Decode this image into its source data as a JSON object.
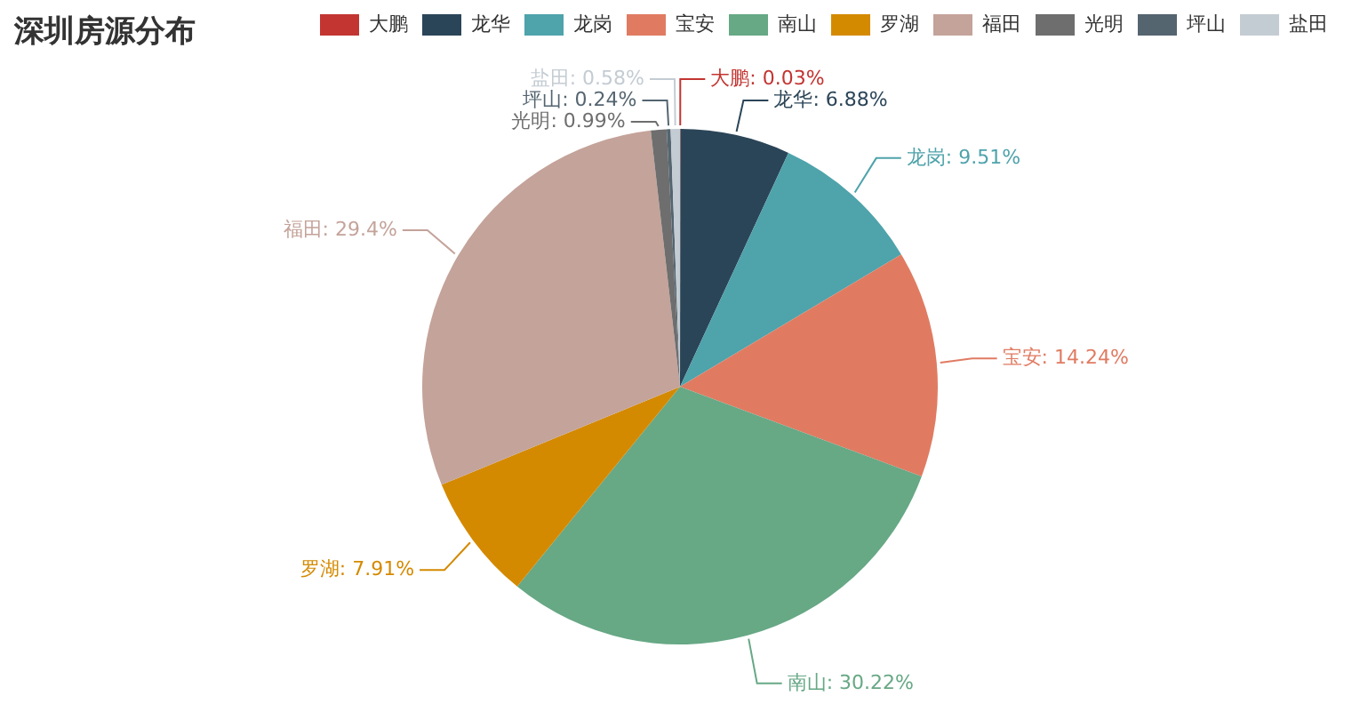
{
  "chart_data": {
    "type": "pie",
    "title": "深圳房源分布",
    "categories": [
      "大鹏",
      "龙华",
      "龙岗",
      "宝安",
      "南山",
      "罗湖",
      "福田",
      "光明",
      "坪山",
      "盐田"
    ],
    "values": [
      0.03,
      6.88,
      9.51,
      14.24,
      30.22,
      7.91,
      29.4,
      0.99,
      0.24,
      0.58
    ],
    "value_labels": [
      "大鹏: 0.03%",
      "龙华: 6.88%",
      "龙岗: 9.51%",
      "宝安: 14.24%",
      "南山: 30.22%",
      "罗湖: 7.91%",
      "福田: 29.4%",
      "光明: 0.99%",
      "坪山: 0.24%",
      "盐田: 0.58%"
    ],
    "colors": [
      "#c23531",
      "#2b4558",
      "#4fa3ab",
      "#e07b62",
      "#67a885",
      "#d48a00",
      "#c4a39a",
      "#6e6e6e",
      "#546570",
      "#c4ccd3"
    ],
    "legend": "top"
  }
}
